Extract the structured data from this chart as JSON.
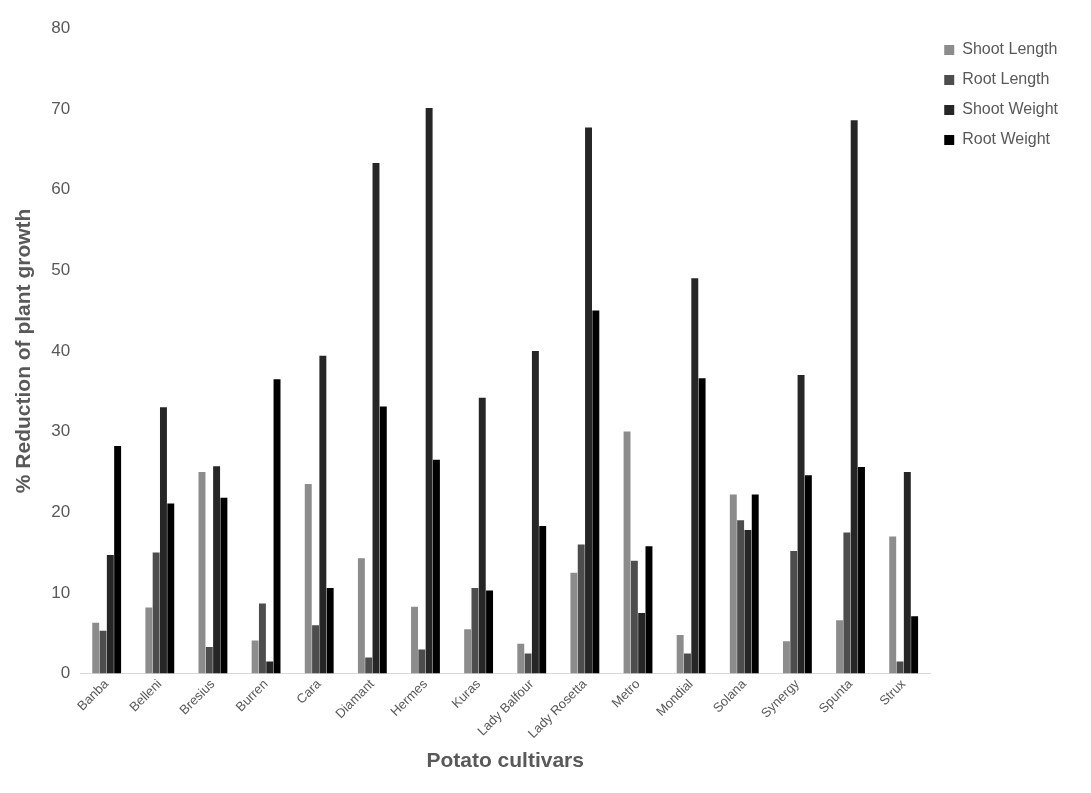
{
  "chart_data": {
    "type": "bar",
    "xlabel": "Potato cultivars",
    "ylabel": "% Reduction of plant growth",
    "categories": [
      "Banba",
      "Belleni",
      "Bresius",
      "Burren",
      "Cara",
      "Diamant",
      "Hermes",
      "Kuras",
      "Lady Balfour",
      "Lady Rosetta",
      "Metro",
      "Mondial",
      "Solana",
      "Synergy",
      "Spunta",
      "Strux"
    ],
    "series": [
      {
        "name": "Shoot Length",
        "color": "#8c8c8c",
        "values": [
          6.3,
          8.2,
          25,
          4.1,
          23.5,
          14.3,
          8.3,
          5.5,
          3.7,
          12.5,
          30,
          4.8,
          22.2,
          4,
          6.6,
          17
        ]
      },
      {
        "name": "Root Length",
        "color": "#4d4d4d",
        "values": [
          5.3,
          15,
          3.3,
          8.7,
          6,
          2,
          3,
          10.6,
          2.5,
          16,
          14,
          2.5,
          19,
          15.2,
          17.5,
          1.5
        ]
      },
      {
        "name": "Shoot Weight",
        "color": "#262626",
        "values": [
          14.7,
          33,
          25.7,
          1.5,
          39.4,
          63.3,
          70.1,
          34.2,
          40,
          67.7,
          7.5,
          49,
          17.8,
          37,
          68.6,
          25
        ]
      },
      {
        "name": "Root Weight",
        "color": "#000000",
        "values": [
          28.2,
          21.1,
          21.8,
          36.5,
          10.6,
          33.1,
          26.5,
          10.3,
          18.3,
          45,
          15.8,
          36.6,
          22.2,
          24.6,
          25.6,
          7.1
        ]
      }
    ],
    "ylim": [
      0,
      80
    ],
    "yticks": [
      0,
      10,
      20,
      30,
      40,
      50,
      60,
      70,
      80
    ],
    "grid": false,
    "legend": "top right"
  }
}
